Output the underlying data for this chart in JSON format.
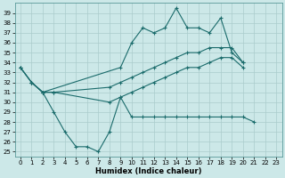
{
  "xlabel": "Humidex (Indice chaleur)",
  "bg_color": "#cce8e8",
  "grid_color": "#aacccc",
  "line_color": "#1a6b6b",
  "yticks": [
    25,
    26,
    27,
    28,
    29,
    30,
    31,
    32,
    33,
    34,
    35,
    36,
    37,
    38,
    39
  ],
  "xticks": [
    0,
    1,
    2,
    3,
    4,
    5,
    6,
    7,
    8,
    9,
    10,
    11,
    12,
    13,
    14,
    15,
    16,
    17,
    18,
    19,
    20,
    21,
    22,
    23
  ],
  "s1_x": [
    0,
    1,
    2,
    9,
    10,
    11,
    12,
    13,
    14,
    15,
    16,
    17,
    18,
    19,
    20
  ],
  "s1_y": [
    33.5,
    32.0,
    31.0,
    33.5,
    36.0,
    37.5,
    37.0,
    37.5,
    39.5,
    37.5,
    37.5,
    37.0,
    38.5,
    35.0,
    34.0
  ],
  "s2_x": [
    0,
    1,
    2,
    3,
    8,
    9,
    10,
    11,
    12,
    13,
    14,
    15,
    16,
    17,
    18,
    19,
    20
  ],
  "s2_y": [
    33.5,
    32.0,
    31.0,
    31.0,
    31.5,
    32.0,
    32.5,
    33.0,
    33.5,
    34.0,
    34.5,
    35.0,
    35.0,
    35.5,
    35.5,
    35.5,
    34.0
  ],
  "s3_x": [
    0,
    1,
    2,
    3,
    8,
    9,
    10,
    11,
    12,
    13,
    14,
    15,
    16,
    17,
    18,
    19,
    20
  ],
  "s3_y": [
    33.5,
    32.0,
    31.0,
    31.0,
    30.0,
    30.5,
    31.0,
    31.5,
    32.0,
    32.5,
    33.0,
    33.5,
    33.5,
    34.0,
    34.5,
    34.5,
    33.5
  ],
  "s4_x": [
    0,
    1,
    2,
    3,
    4,
    5,
    6,
    7,
    8,
    9,
    10,
    11,
    12,
    13,
    14,
    15,
    16,
    17,
    18,
    19,
    20,
    21,
    22,
    23
  ],
  "s4_y": [
    null,
    32.0,
    31.0,
    29.0,
    27.0,
    25.5,
    25.5,
    25.0,
    27.0,
    30.5,
    28.5,
    28.5,
    28.5,
    28.5,
    28.5,
    28.5,
    28.5,
    28.5,
    28.5,
    28.5,
    28.5,
    28.0,
    null,
    null
  ],
  "lw": 0.8,
  "ms": 3,
  "xlabel_fs": 6,
  "tick_fs": 5
}
